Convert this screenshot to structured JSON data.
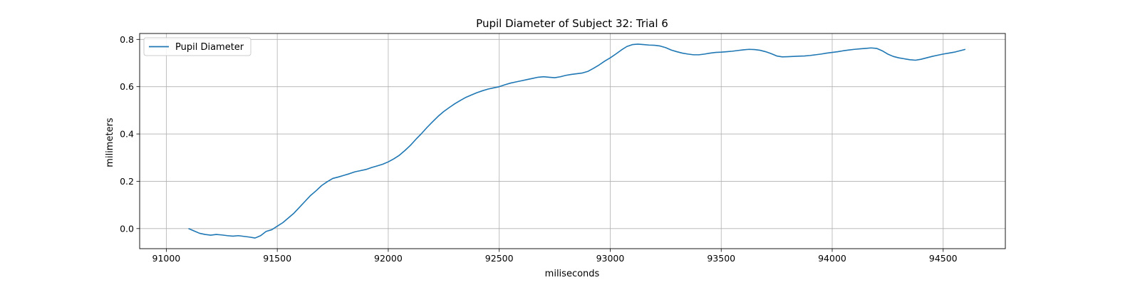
{
  "chart_data": {
    "type": "line",
    "title": "Pupil Diameter of Subject 32: Trial 6",
    "xlabel": "miliseconds",
    "ylabel": "milimeters",
    "xlim": [
      90880,
      94780
    ],
    "ylim": [
      -0.085,
      0.825
    ],
    "xticks": [
      91000,
      91500,
      92000,
      92500,
      93000,
      93500,
      94000,
      94500
    ],
    "yticks": [
      0.0,
      0.2,
      0.4,
      0.6,
      0.8
    ],
    "ytick_labels": [
      "0.0",
      "0.2",
      "0.4",
      "0.6",
      "0.8"
    ],
    "grid": true,
    "legend_position": "top-left",
    "series": [
      {
        "name": "Pupil Diameter",
        "color": "#1f77b4",
        "x": [
          91100,
          91125,
          91150,
          91175,
          91200,
          91225,
          91250,
          91275,
          91300,
          91325,
          91350,
          91375,
          91400,
          91425,
          91450,
          91475,
          91500,
          91525,
          91550,
          91575,
          91600,
          91625,
          91650,
          91675,
          91700,
          91725,
          91750,
          91775,
          91800,
          91825,
          91850,
          91875,
          91900,
          91925,
          91950,
          91975,
          92000,
          92025,
          92050,
          92075,
          92100,
          92125,
          92150,
          92175,
          92200,
          92225,
          92250,
          92275,
          92300,
          92325,
          92350,
          92375,
          92400,
          92425,
          92450,
          92475,
          92500,
          92525,
          92550,
          92575,
          92600,
          92625,
          92650,
          92675,
          92700,
          92725,
          92750,
          92775,
          92800,
          92825,
          92850,
          92875,
          92900,
          92925,
          92950,
          92975,
          93000,
          93025,
          93050,
          93075,
          93100,
          93125,
          93150,
          93175,
          93200,
          93225,
          93250,
          93275,
          93300,
          93325,
          93350,
          93375,
          93400,
          93425,
          93450,
          93475,
          93500,
          93525,
          93550,
          93575,
          93600,
          93625,
          93650,
          93675,
          93700,
          93725,
          93750,
          93775,
          93800,
          93825,
          93850,
          93875,
          93900,
          93925,
          93950,
          93975,
          94000,
          94025,
          94050,
          94075,
          94100,
          94125,
          94150,
          94175,
          94200,
          94225,
          94250,
          94275,
          94300,
          94325,
          94350,
          94375,
          94400,
          94425,
          94450,
          94475,
          94500,
          94525,
          94550,
          94575,
          94600
        ],
        "y": [
          0.0,
          -0.01,
          -0.02,
          -0.025,
          -0.028,
          -0.025,
          -0.027,
          -0.03,
          -0.032,
          -0.03,
          -0.033,
          -0.036,
          -0.04,
          -0.03,
          -0.012,
          -0.005,
          0.01,
          0.025,
          0.045,
          0.065,
          0.09,
          0.115,
          0.14,
          0.16,
          0.182,
          0.198,
          0.212,
          0.218,
          0.225,
          0.232,
          0.24,
          0.245,
          0.25,
          0.258,
          0.265,
          0.272,
          0.282,
          0.295,
          0.31,
          0.33,
          0.352,
          0.378,
          0.402,
          0.428,
          0.452,
          0.475,
          0.495,
          0.512,
          0.528,
          0.542,
          0.555,
          0.565,
          0.575,
          0.583,
          0.59,
          0.595,
          0.6,
          0.608,
          0.615,
          0.62,
          0.625,
          0.63,
          0.635,
          0.64,
          0.642,
          0.64,
          0.638,
          0.642,
          0.648,
          0.652,
          0.655,
          0.658,
          0.665,
          0.678,
          0.692,
          0.708,
          0.722,
          0.738,
          0.755,
          0.77,
          0.778,
          0.78,
          0.778,
          0.776,
          0.775,
          0.772,
          0.765,
          0.755,
          0.748,
          0.742,
          0.738,
          0.735,
          0.735,
          0.738,
          0.742,
          0.745,
          0.746,
          0.748,
          0.75,
          0.753,
          0.756,
          0.758,
          0.757,
          0.754,
          0.748,
          0.74,
          0.73,
          0.726,
          0.727,
          0.728,
          0.729,
          0.73,
          0.732,
          0.735,
          0.738,
          0.742,
          0.745,
          0.748,
          0.752,
          0.755,
          0.758,
          0.76,
          0.762,
          0.764,
          0.762,
          0.752,
          0.738,
          0.728,
          0.722,
          0.718,
          0.714,
          0.712,
          0.716,
          0.722,
          0.728,
          0.733,
          0.738,
          0.742,
          0.746,
          0.752,
          0.758
        ]
      }
    ]
  }
}
